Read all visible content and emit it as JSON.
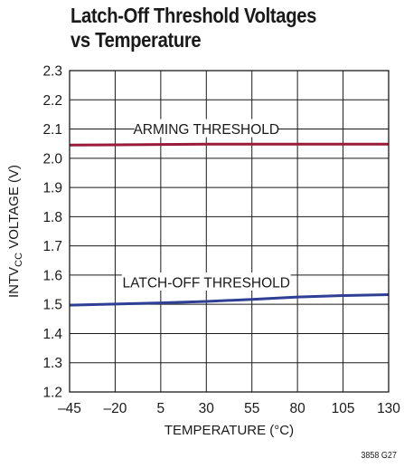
{
  "figure_id": "3858 G27",
  "chart_data": {
    "type": "line",
    "title_lines": [
      "Latch-Off Threshold Voltages",
      "vs Temperature"
    ],
    "xlabel": "TEMPERATURE (°C)",
    "ylabel": {
      "main": "INTV",
      "subscript": "CC",
      "suffix": " VOLTAGE (V)"
    },
    "xlim": [
      -45,
      130
    ],
    "ylim": [
      1.2,
      2.3
    ],
    "x_ticks": [
      -45,
      -20,
      5,
      30,
      55,
      80,
      105,
      130
    ],
    "x_tick_labels": [
      "–45",
      "–20",
      "5",
      "30",
      "55",
      "80",
      "105",
      "130"
    ],
    "y_ticks": [
      1.2,
      1.3,
      1.4,
      1.5,
      1.6,
      1.7,
      1.8,
      1.9,
      2.0,
      2.1,
      2.2,
      2.3
    ],
    "y_tick_labels": [
      "1.2",
      "1.3",
      "1.4",
      "1.5",
      "1.6",
      "1.7",
      "1.8",
      "1.9",
      "2.0",
      "2.1",
      "2.2",
      "2.3"
    ],
    "grid": true,
    "series": [
      {
        "name": "ARMING THRESHOLD",
        "color": "#9a1a3a",
        "x": [
          -45,
          -20,
          5,
          30,
          55,
          80,
          105,
          130
        ],
        "y": [
          2.045,
          2.046,
          2.047,
          2.048,
          2.048,
          2.048,
          2.048,
          2.048
        ]
      },
      {
        "name": "LATCH-OFF THRESHOLD",
        "color": "#2e3f94",
        "x": [
          -45,
          -20,
          5,
          30,
          55,
          80,
          105,
          130
        ],
        "y": [
          1.497,
          1.501,
          1.505,
          1.51,
          1.517,
          1.525,
          1.53,
          1.533
        ]
      }
    ],
    "annotations": [
      {
        "text": "ARMING THRESHOLD",
        "x": 30,
        "y": 2.1
      },
      {
        "text": "LATCH-OFF THRESHOLD",
        "x": 30,
        "y": 1.575
      }
    ]
  }
}
